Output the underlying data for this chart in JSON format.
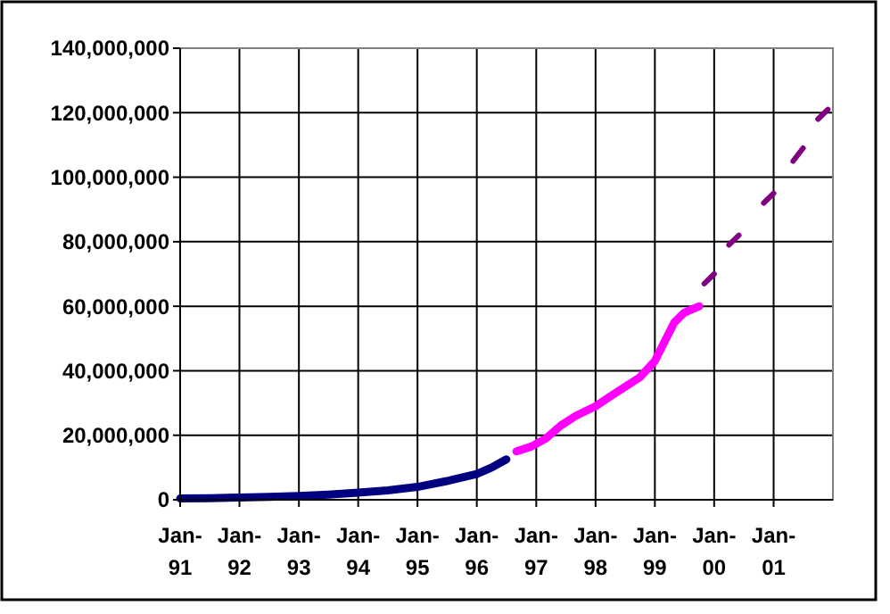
{
  "chart_data": {
    "type": "line",
    "xlim": [
      "1991-01",
      "2002-01"
    ],
    "xticks": [
      {
        "value": "1991-01",
        "label": "Jan-91"
      },
      {
        "value": "1992-01",
        "label": "Jan-92"
      },
      {
        "value": "1993-01",
        "label": "Jan-93"
      },
      {
        "value": "1994-01",
        "label": "Jan-94"
      },
      {
        "value": "1995-01",
        "label": "Jan-95"
      },
      {
        "value": "1996-01",
        "label": "Jan-96"
      },
      {
        "value": "1997-01",
        "label": "Jan-97"
      },
      {
        "value": "1998-01",
        "label": "Jan-98"
      },
      {
        "value": "1999-01",
        "label": "Jan-99"
      },
      {
        "value": "2000-01",
        "label": "Jan-00"
      },
      {
        "value": "2001-01",
        "label": "Jan-01"
      }
    ],
    "ylim": [
      0,
      140000000
    ],
    "yticks": [
      0,
      {
        "value": 20000000,
        "label": "20,000,000"
      },
      {
        "value": 40000000,
        "label": "40,000,000"
      },
      {
        "value": 60000000,
        "label": "60,000,000"
      },
      {
        "value": 80000000,
        "label": "80,000,000"
      },
      {
        "value": 100000000,
        "label": "100,000,000"
      },
      {
        "value": 120000000,
        "label": "120,000,000"
      },
      {
        "value": 140000000,
        "label": "140,000,000"
      }
    ],
    "grid": true,
    "marker": "none",
    "line_style": "solid",
    "series": [
      {
        "color": "#000080",
        "x": [
          "1991-01",
          "1991-07",
          "1992-01",
          "1992-07",
          "1993-01",
          "1993-07",
          "1994-01",
          "1994-07",
          "1995-01",
          "1995-07",
          "1996-01",
          "1996-04",
          "1996-07"
        ],
        "values": [
          400000,
          500000,
          700000,
          900000,
          1200000,
          1600000,
          2200000,
          2900000,
          4000000,
          5800000,
          8000000,
          10000000,
          12500000
        ]
      },
      {
        "color": "#ff00ff",
        "x": [
          "1996-09",
          "1996-12",
          "1997-03",
          "1997-06",
          "1997-09",
          "1998-01",
          "1998-04",
          "1998-07",
          "1998-10",
          "1999-01",
          "1999-03",
          "1999-05",
          "1999-07",
          "1999-10"
        ],
        "values": [
          15000000,
          16500000,
          19000000,
          23000000,
          26000000,
          29000000,
          32000000,
          35000000,
          38000000,
          43000000,
          49000000,
          55000000,
          58000000,
          60000000
        ]
      },
      {
        "color": "#800080",
        "x": [
          "1999-11",
          "2000-01",
          "2000-03",
          "2000-04",
          "2000-06",
          "2000-09",
          "2000-11",
          "2001-01",
          "2001-03",
          "2001-05",
          "2001-07",
          "2001-09",
          "2001-10",
          "2001-12"
        ],
        "values": [
          67000000,
          70000000,
          null,
          79000000,
          82000000,
          null,
          92000000,
          95000000,
          null,
          105000000,
          109000000,
          null,
          118000000,
          121000000
        ]
      }
    ]
  }
}
